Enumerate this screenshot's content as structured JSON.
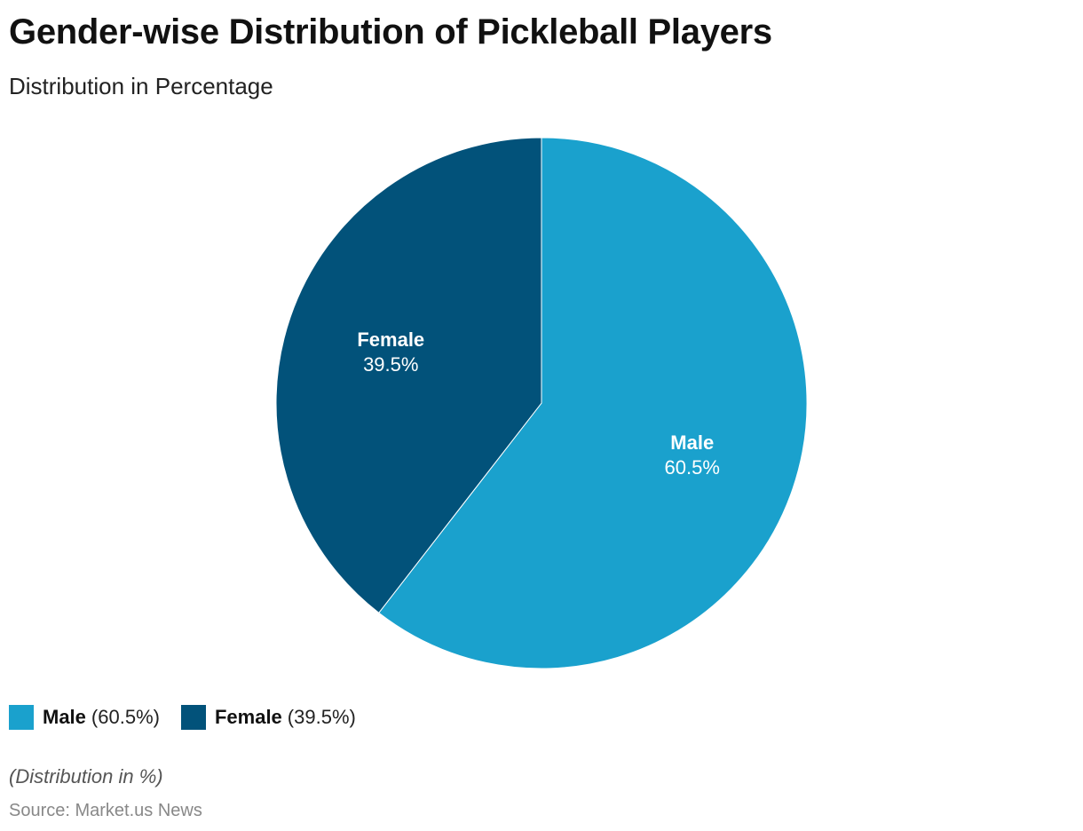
{
  "header": {
    "title": "Gender-wise Distribution of Pickleball Players",
    "subtitle": "Distribution in Percentage"
  },
  "chart_data": {
    "type": "pie",
    "title": "Gender-wise Distribution of Pickleball Players",
    "subtitle": "Distribution in Percentage",
    "categories": [
      "Male",
      "Female"
    ],
    "values": [
      60.5,
      39.5
    ],
    "value_labels": [
      "60.5%",
      "39.5%"
    ],
    "colors": [
      "#1aa1cd",
      "#02527a"
    ],
    "start_angle": "12 o'clock",
    "direction": "clockwise",
    "legend_placement": "bottom-left"
  },
  "legend": {
    "items": [
      {
        "name": "Male",
        "value_text": "(60.5%)",
        "color": "#1aa1cd"
      },
      {
        "name": "Female",
        "value_text": "(39.5%)",
        "color": "#02527a"
      }
    ]
  },
  "footer": {
    "note": "(Distribution in %)",
    "source": "Source: Market.us News"
  }
}
